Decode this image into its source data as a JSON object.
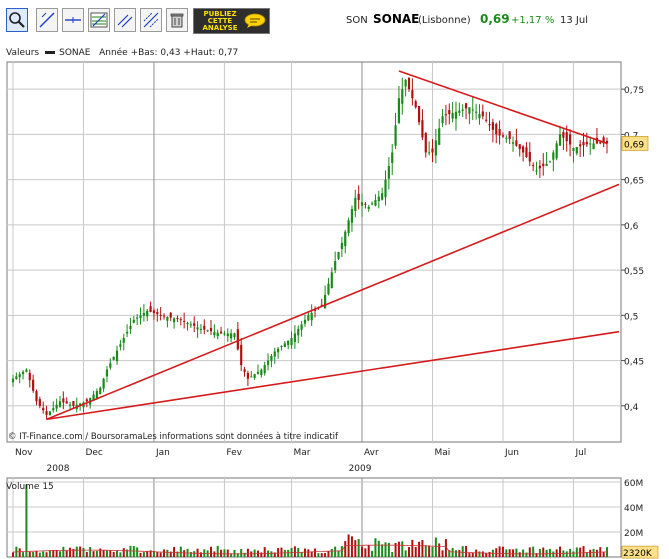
{
  "toolbar": {
    "tools": [
      {
        "name": "zoom-icon",
        "active": true
      },
      {
        "name": "trendline-icon",
        "active": false
      },
      {
        "name": "horizontal-line-icon",
        "active": false
      },
      {
        "name": "fibonacci-icon",
        "active": false
      },
      {
        "name": "parallel-line-icon",
        "active": false
      },
      {
        "name": "channel-icon",
        "active": false
      },
      {
        "name": "trash-icon",
        "active": false
      }
    ],
    "ad_label": "PUBLIEZ CETTE ANALYSE"
  },
  "quote": {
    "ticker_prefix": "SON",
    "name": "SONAE",
    "exchange": "(Lisbonne)",
    "price": "0,69",
    "change": "+1,17 %",
    "date": "13 Jul"
  },
  "legend": {
    "values_label": "Valeurs",
    "series_label": "SONAE",
    "range_text": "Année +Bas: 0,43 +Haut: 0,77"
  },
  "copyright": "© IT-Finance.com / BoursoramaLes informations sont données à titre indicatif",
  "colors": {
    "up": "#1a8a1a",
    "down": "#b01010",
    "trend": "#d41a1a",
    "grid": "#c8c8c8",
    "price_tag": "#ffe08a"
  },
  "chart_data": [
    {
      "type": "candlestick",
      "title": "SONAE",
      "y_ticks": [
        "0,75",
        "0,7",
        "0,65",
        "0,6",
        "0,55",
        "0,5",
        "0,45",
        "0,4"
      ],
      "y_tick_values": [
        0.75,
        0.7,
        0.65,
        0.6,
        0.55,
        0.5,
        0.45,
        0.4
      ],
      "ylim": [
        0.36,
        0.78
      ],
      "x_month_labels": [
        "Nov",
        "Dec",
        "Jan",
        "Fev",
        "Mar",
        "Avr",
        "Mai",
        "Jun",
        "Jul"
      ],
      "x_month_index": [
        0,
        21,
        42,
        63,
        83,
        104,
        125,
        146,
        167
      ],
      "x_year_labels": [
        {
          "label": "2008",
          "index": 10
        },
        {
          "label": "2009",
          "index": 100
        }
      ],
      "x_count": 178,
      "last_price_tag": "0,69",
      "anchors": [
        {
          "i": 0,
          "v": 0.43
        },
        {
          "i": 4,
          "v": 0.44
        },
        {
          "i": 7,
          "v": 0.405
        },
        {
          "i": 10,
          "v": 0.39
        },
        {
          "i": 14,
          "v": 0.405
        },
        {
          "i": 18,
          "v": 0.4
        },
        {
          "i": 22,
          "v": 0.405
        },
        {
          "i": 26,
          "v": 0.42
        },
        {
          "i": 28,
          "v": 0.44
        },
        {
          "i": 33,
          "v": 0.475
        },
        {
          "i": 36,
          "v": 0.495
        },
        {
          "i": 40,
          "v": 0.505
        },
        {
          "i": 44,
          "v": 0.5
        },
        {
          "i": 50,
          "v": 0.495
        },
        {
          "i": 56,
          "v": 0.485
        },
        {
          "i": 62,
          "v": 0.48
        },
        {
          "i": 66,
          "v": 0.48
        },
        {
          "i": 68,
          "v": 0.445
        },
        {
          "i": 70,
          "v": 0.43
        },
        {
          "i": 74,
          "v": 0.44
        },
        {
          "i": 78,
          "v": 0.46
        },
        {
          "i": 83,
          "v": 0.475
        },
        {
          "i": 88,
          "v": 0.5
        },
        {
          "i": 92,
          "v": 0.51
        },
        {
          "i": 96,
          "v": 0.56
        },
        {
          "i": 98,
          "v": 0.58
        },
        {
          "i": 102,
          "v": 0.63
        },
        {
          "i": 106,
          "v": 0.62
        },
        {
          "i": 110,
          "v": 0.635
        },
        {
          "i": 113,
          "v": 0.68
        },
        {
          "i": 115,
          "v": 0.74
        },
        {
          "i": 117,
          "v": 0.76
        },
        {
          "i": 120,
          "v": 0.73
        },
        {
          "i": 123,
          "v": 0.68
        },
        {
          "i": 125,
          "v": 0.68
        },
        {
          "i": 128,
          "v": 0.72
        },
        {
          "i": 132,
          "v": 0.725
        },
        {
          "i": 136,
          "v": 0.73
        },
        {
          "i": 140,
          "v": 0.72
        },
        {
          "i": 144,
          "v": 0.7
        },
        {
          "i": 148,
          "v": 0.695
        },
        {
          "i": 152,
          "v": 0.68
        },
        {
          "i": 156,
          "v": 0.66
        },
        {
          "i": 160,
          "v": 0.67
        },
        {
          "i": 163,
          "v": 0.7
        },
        {
          "i": 167,
          "v": 0.685
        },
        {
          "i": 172,
          "v": 0.69
        },
        {
          "i": 177,
          "v": 0.69
        }
      ],
      "trendlines": [
        {
          "i1": 10,
          "v1": 0.385,
          "i2": 230,
          "v2": 0.72
        },
        {
          "i1": 10,
          "v1": 0.385,
          "i2": 230,
          "v2": 0.51
        },
        {
          "i1": 115,
          "v1": 0.77,
          "i2": 177,
          "v2": 0.69
        }
      ]
    },
    {
      "type": "bar",
      "title": "Volume 15",
      "y_ticks": [
        "60M",
        "40M",
        "20M",
        "2320K"
      ],
      "y_tick_values": [
        60,
        40,
        20,
        2.32
      ],
      "ylim": [
        0,
        60
      ],
      "spike": {
        "i": 4,
        "v": 58
      },
      "last_volume_tag": "2320K"
    }
  ]
}
